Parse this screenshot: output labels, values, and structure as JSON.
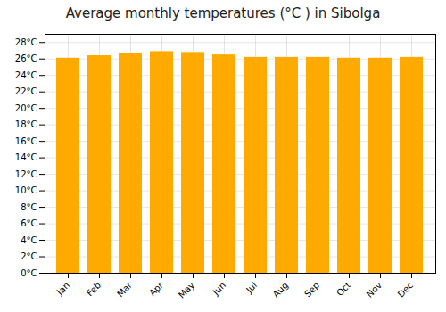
{
  "chart_data": {
    "type": "bar",
    "title": "Average monthly temperatures (°C ) in Sibolga",
    "categories": [
      "Jan",
      "Feb",
      "Mar",
      "Apr",
      "May",
      "Jun",
      "Jul",
      "Aug",
      "Sep",
      "Oct",
      "Nov",
      "Dec"
    ],
    "values": [
      26.1,
      26.4,
      26.7,
      26.9,
      26.8,
      26.5,
      26.2,
      26.2,
      26.2,
      26.1,
      26.1,
      26.2
    ],
    "color": "#FFAA00",
    "ylim": [
      0,
      29
    ],
    "yticks": [
      {
        "value": 0,
        "label": "0°C"
      },
      {
        "value": 2,
        "label": "2°C"
      },
      {
        "value": 4,
        "label": "4°C"
      },
      {
        "value": 6,
        "label": "6°C"
      },
      {
        "value": 8,
        "label": "8°C"
      },
      {
        "value": 10,
        "label": "10°C"
      },
      {
        "value": 12,
        "label": "12°C"
      },
      {
        "value": 14,
        "label": "14°C"
      },
      {
        "value": 16,
        "label": "16°C"
      },
      {
        "value": 18,
        "label": "18°C"
      },
      {
        "value": 20,
        "label": "20°C"
      },
      {
        "value": 22,
        "label": "22°C"
      },
      {
        "value": 24,
        "label": "24°C"
      },
      {
        "value": 26,
        "label": "26°C"
      },
      {
        "value": 28,
        "label": "28°C"
      }
    ],
    "grid": true
  }
}
